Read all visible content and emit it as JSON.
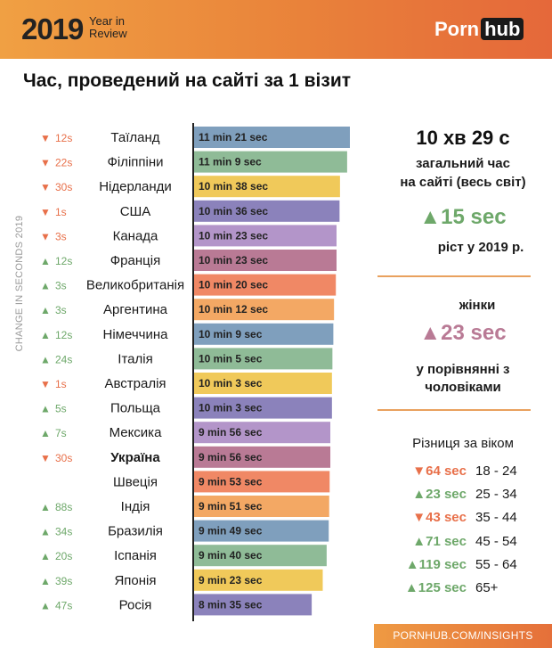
{
  "header": {
    "year": "2019",
    "subtitle_line1": "Year in",
    "subtitle_line2": "Review",
    "logo_part1": "Porn",
    "logo_part2": "hub"
  },
  "colors": {
    "up": "#6ea86a",
    "down": "#e8704a",
    "bars": [
      "#7f9fbd",
      "#8fbb97",
      "#f0c95a",
      "#8b82bb",
      "#b395c9",
      "#b97a95",
      "#f08865",
      "#f3a864"
    ]
  },
  "chart_data": {
    "type": "bar",
    "title": "Час, проведений на сайті за 1 візит",
    "ylabel": "CHANGE IN SECONDS 2019",
    "unit": "seconds",
    "rows": [
      {
        "country": "Таїланд",
        "value_sec": 681,
        "label": "11 min 21 sec",
        "change": "12s",
        "dir": "down"
      },
      {
        "country": "Філіппіни",
        "value_sec": 669,
        "label": "11 min 9 sec",
        "change": "22s",
        "dir": "down"
      },
      {
        "country": "Нідерланди",
        "value_sec": 638,
        "label": "10 min 38 sec",
        "change": "30s",
        "dir": "down"
      },
      {
        "country": "США",
        "value_sec": 636,
        "label": "10 min 36 sec",
        "change": "1s",
        "dir": "down"
      },
      {
        "country": "Канада",
        "value_sec": 623,
        "label": "10 min 23 sec",
        "change": "3s",
        "dir": "down"
      },
      {
        "country": "Франція",
        "value_sec": 623,
        "label": "10 min 23 sec",
        "change": "12s",
        "dir": "up"
      },
      {
        "country": "Великобританія",
        "value_sec": 620,
        "label": "10 min 20 sec",
        "change": "3s",
        "dir": "up"
      },
      {
        "country": "Аргентина",
        "value_sec": 612,
        "label": "10 min 12 sec",
        "change": "3s",
        "dir": "up"
      },
      {
        "country": "Німеччина",
        "value_sec": 609,
        "label": "10 min 9 sec",
        "change": "12s",
        "dir": "up"
      },
      {
        "country": "Італія",
        "value_sec": 605,
        "label": "10 min 5 sec",
        "change": "24s",
        "dir": "up"
      },
      {
        "country": "Австралія",
        "value_sec": 603,
        "label": "10 min 3 sec",
        "change": "1s",
        "dir": "down"
      },
      {
        "country": "Польща",
        "value_sec": 603,
        "label": "10 min 3 sec",
        "change": "5s",
        "dir": "up"
      },
      {
        "country": "Мексика",
        "value_sec": 596,
        "label": "9 min 56 sec",
        "change": "7s",
        "dir": "up"
      },
      {
        "country": "Україна",
        "value_sec": 596,
        "label": "9 min 56 sec",
        "change": "30s",
        "dir": "down",
        "highlight": true
      },
      {
        "country": "Швеція",
        "value_sec": 593,
        "label": "9 min 53 sec",
        "change": "",
        "dir": "none"
      },
      {
        "country": "Індія",
        "value_sec": 591,
        "label": "9 min 51 sec",
        "change": "88s",
        "dir": "up"
      },
      {
        "country": "Бразилія",
        "value_sec": 589,
        "label": "9 min 49 sec",
        "change": "34s",
        "dir": "up"
      },
      {
        "country": "Іспанія",
        "value_sec": 580,
        "label": "9 min 40 sec",
        "change": "20s",
        "dir": "up"
      },
      {
        "country": "Японія",
        "value_sec": 563,
        "label": "9 min 23 sec",
        "change": "39s",
        "dir": "up"
      },
      {
        "country": "Росія",
        "value_sec": 515,
        "label": "8 min 35 sec",
        "change": "47s",
        "dir": "up"
      }
    ]
  },
  "summary": {
    "global_time": "10 хв 29 с",
    "global_line1": "загальний час",
    "global_line2": "на сайті (весь світ)",
    "growth_value": "15 sec",
    "growth_label": "ріст у 2019 р.",
    "women_label": "жінки",
    "women_value": "23 sec",
    "women_line1": "у порівнянні з",
    "women_line2": "чоловіками"
  },
  "age": {
    "title": "Різниця за віком",
    "rows": [
      {
        "value": "64 sec",
        "dir": "down",
        "group": "18 - 24"
      },
      {
        "value": "23 sec",
        "dir": "up",
        "group": "25 - 34"
      },
      {
        "value": "43 sec",
        "dir": "down",
        "group": "35 - 44"
      },
      {
        "value": "71 sec",
        "dir": "up",
        "group": "45 - 54"
      },
      {
        "value": "119 sec",
        "dir": "up",
        "group": "55 - 64"
      },
      {
        "value": "125 sec",
        "dir": "up",
        "group": "65+"
      }
    ]
  },
  "footer": {
    "text": "PORNHUB.COM/INSIGHTS"
  }
}
